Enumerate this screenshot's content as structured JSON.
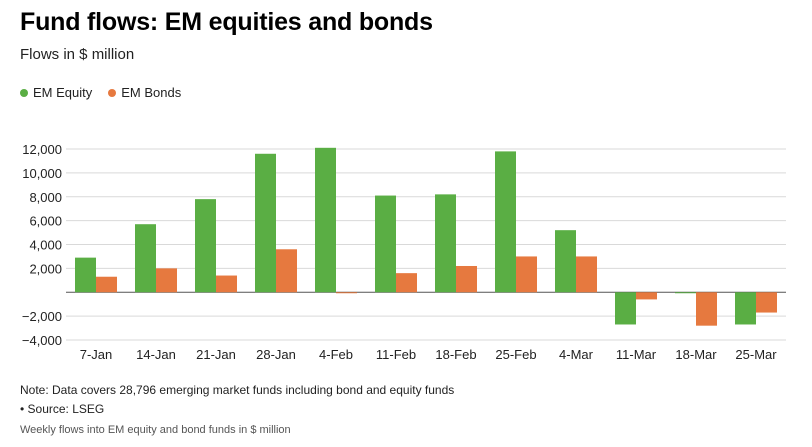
{
  "title": "Fund flows: EM equities and bonds",
  "subtitle": "Flows in $ million",
  "note": "Note: Data covers 28,796 emerging market funds including bond and equity funds",
  "source": "• Source: LSEG",
  "caption": "Weekly flows into EM equity and bond funds in $ million",
  "colors": {
    "equity": "#5aae44",
    "bonds": "#e6793f",
    "grid": "#d9d9d9",
    "zero": "#555555"
  },
  "chart_data": {
    "type": "bar",
    "categories": [
      "7-Jan",
      "14-Jan",
      "21-Jan",
      "28-Jan",
      "4-Feb",
      "11-Feb",
      "18-Feb",
      "25-Feb",
      "4-Mar",
      "11-Mar",
      "18-Mar",
      "25-Mar"
    ],
    "series": [
      {
        "name": "EM Equity",
        "values": [
          2900,
          5700,
          7800,
          11600,
          12100,
          8100,
          8200,
          11800,
          5200,
          -2700,
          -50,
          -2700
        ]
      },
      {
        "name": "EM Bonds",
        "values": [
          1300,
          2000,
          1400,
          3600,
          -50,
          1600,
          2200,
          3000,
          3000,
          -600,
          -2800,
          -1700
        ]
      }
    ],
    "yticks": [
      12000,
      10000,
      8000,
      6000,
      4000,
      2000,
      -2000,
      -4000
    ],
    "ytick_labels": [
      "12,000",
      "10,000",
      "8,000",
      "6,000",
      "4,000",
      "2,000",
      "−2,000",
      "−4,000"
    ],
    "ylim": [
      -4000,
      12000
    ],
    "legend_position": "top-left",
    "grid": true
  }
}
